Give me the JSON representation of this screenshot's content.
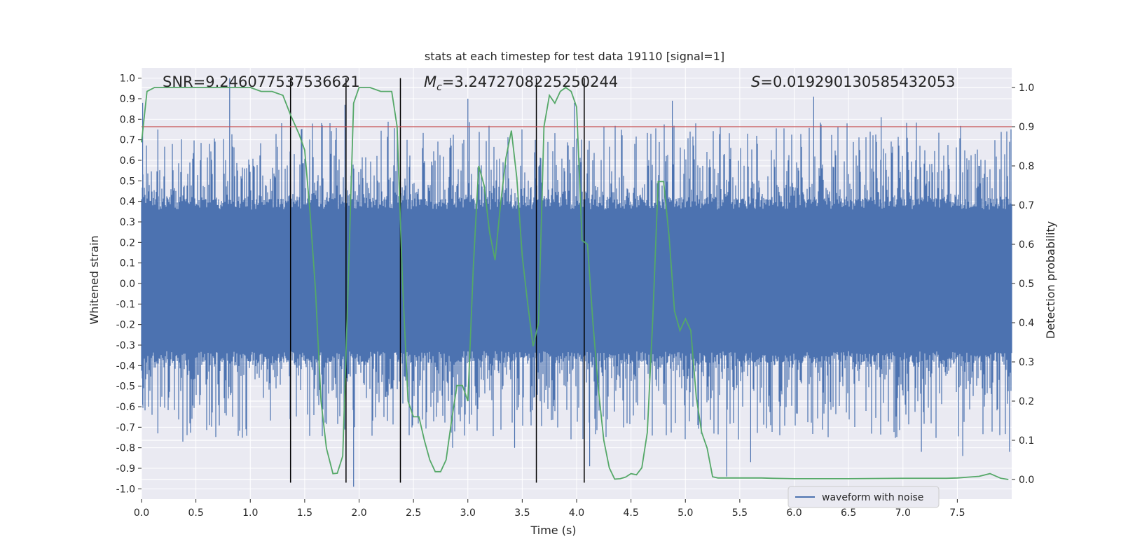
{
  "chart_data": {
    "type": "line",
    "title": "stats at each timestep for test data 19110 [signal=1]",
    "xlabel": "Time (s)",
    "ylabel": "Whitened strain",
    "y2label": "Detection probability",
    "xlim": [
      0.0,
      8.0
    ],
    "ylim": [
      -1.05,
      1.05
    ],
    "y2lim": [
      -0.05,
      1.05
    ],
    "xticks": [
      0.0,
      0.5,
      1.0,
      1.5,
      2.0,
      2.5,
      3.0,
      3.5,
      4.0,
      4.5,
      5.0,
      5.5,
      6.0,
      6.5,
      7.0,
      7.5
    ],
    "xtick_labels": [
      "0.0",
      "0.5",
      "1.0",
      "1.5",
      "2.0",
      "2.5",
      "3.0",
      "3.5",
      "4.0",
      "4.5",
      "5.0",
      "5.5",
      "6.0",
      "6.5",
      "7.0",
      "7.5"
    ],
    "yticks": [
      1.0,
      0.9,
      0.8,
      0.7,
      0.6,
      0.5,
      0.4,
      0.3,
      0.2,
      0.1,
      0.0,
      -0.1,
      -0.2,
      -0.3,
      -0.4,
      -0.5,
      -0.6,
      -0.7,
      -0.8,
      -0.9,
      -1.0
    ],
    "ytick_labels": [
      "1.0",
      "0.9",
      "0.8",
      "0.7",
      "0.6",
      "0.5",
      "0.4",
      "0.3",
      "0.2",
      "0.1",
      "0.0",
      "-0.1",
      "-0.2",
      "-0.3",
      "-0.4",
      "-0.5",
      "-0.6",
      "-0.7",
      "-0.8",
      "-0.9",
      "-1.0"
    ],
    "y2ticks": [
      1.0,
      0.9,
      0.8,
      0.7,
      0.6,
      0.5,
      0.4,
      0.3,
      0.2,
      0.1,
      0.0
    ],
    "y2tick_labels": [
      "1.0",
      "0.9",
      "0.8",
      "0.7",
      "0.6",
      "0.5",
      "0.4",
      "0.3",
      "0.2",
      "0.1",
      "0.0"
    ],
    "grid": true,
    "annotations": {
      "snr": "SNR=9.246077537536621",
      "mc_symbol": "M",
      "mc_sub": "c",
      "mc_value": "=3.2472708225250244",
      "s_symbol": "S",
      "s_value": "=0.019290130585432053"
    },
    "threshold": {
      "value": 0.9,
      "axis": "right",
      "color": "#c44e52"
    },
    "vlines_x": [
      1.37,
      1.88,
      2.38,
      3.63,
      4.07
    ],
    "legend": {
      "location": "bottom-right",
      "entries": [
        "waveform with noise"
      ]
    },
    "colors": {
      "waveform": "#4c72b0",
      "probability": "#55a868",
      "vline": "#000000",
      "axes_bg": "#eaeaf2",
      "grid": "#ffffff"
    },
    "series": [
      {
        "name": "waveform with noise",
        "axis": "left",
        "style": "dense noise band",
        "core_envelope": [
          -0.38,
          0.41
        ],
        "approx_spike_range": [
          -1.0,
          1.0
        ],
        "notable_spikes": [
          {
            "x": 0.01,
            "y": 0.88
          },
          {
            "x": 0.01,
            "y": -0.59
          },
          {
            "x": 0.15,
            "y": 0.75
          },
          {
            "x": 0.15,
            "y": -0.73
          },
          {
            "x": 0.38,
            "y": -0.77
          },
          {
            "x": 0.81,
            "y": 1.0
          },
          {
            "x": 0.96,
            "y": -0.71
          },
          {
            "x": 1.87,
            "y": 0.87
          },
          {
            "x": 1.95,
            "y": -0.99
          },
          {
            "x": 2.86,
            "y": -0.8
          },
          {
            "x": 3.0,
            "y": 0.9
          },
          {
            "x": 3.43,
            "y": -0.8
          },
          {
            "x": 3.98,
            "y": 0.88
          },
          {
            "x": 4.12,
            "y": -0.89
          },
          {
            "x": 4.88,
            "y": 0.89
          },
          {
            "x": 5.38,
            "y": -0.94
          },
          {
            "x": 5.6,
            "y": -0.87
          },
          {
            "x": 6.18,
            "y": 0.91
          },
          {
            "x": 6.8,
            "y": 0.81
          },
          {
            "x": 7.17,
            "y": -0.82
          },
          {
            "x": 7.55,
            "y": -0.84
          },
          {
            "x": 7.98,
            "y": -0.82
          },
          {
            "x": 7.98,
            "y": 0.69
          }
        ]
      },
      {
        "name": "detection probability",
        "axis": "right",
        "x": [
          0.0,
          0.05,
          0.12,
          0.2,
          0.5,
          0.8,
          1.0,
          1.1,
          1.2,
          1.3,
          1.37,
          1.45,
          1.5,
          1.55,
          1.6,
          1.65,
          1.7,
          1.76,
          1.8,
          1.85,
          1.9,
          1.95,
          2.0,
          2.05,
          2.1,
          2.2,
          2.3,
          2.35,
          2.4,
          2.45,
          2.5,
          2.55,
          2.6,
          2.65,
          2.7,
          2.75,
          2.8,
          2.85,
          2.9,
          2.95,
          3.0,
          3.05,
          3.1,
          3.15,
          3.2,
          3.25,
          3.3,
          3.35,
          3.4,
          3.45,
          3.5,
          3.55,
          3.6,
          3.65,
          3.7,
          3.75,
          3.8,
          3.85,
          3.9,
          3.95,
          4.0,
          4.05,
          4.1,
          4.15,
          4.2,
          4.25,
          4.3,
          4.35,
          4.4,
          4.45,
          4.5,
          4.55,
          4.6,
          4.65,
          4.7,
          4.75,
          4.8,
          4.85,
          4.9,
          4.95,
          5.0,
          5.05,
          5.1,
          5.15,
          5.2,
          5.25,
          5.3,
          5.5,
          5.7,
          5.8,
          6.0,
          6.5,
          7.0,
          7.4,
          7.5,
          7.6,
          7.7,
          7.8,
          7.9,
          7.97
        ],
        "y": [
          0.86,
          0.99,
          1.0,
          1.0,
          1.0,
          1.0,
          1.0,
          0.99,
          0.99,
          0.98,
          0.93,
          0.88,
          0.84,
          0.68,
          0.48,
          0.2,
          0.08,
          0.015,
          0.016,
          0.06,
          0.5,
          0.96,
          1.0,
          1.0,
          1.0,
          0.99,
          0.99,
          0.9,
          0.5,
          0.2,
          0.16,
          0.16,
          0.1,
          0.05,
          0.02,
          0.02,
          0.05,
          0.15,
          0.24,
          0.24,
          0.2,
          0.54,
          0.8,
          0.75,
          0.63,
          0.56,
          0.7,
          0.82,
          0.89,
          0.77,
          0.57,
          0.45,
          0.34,
          0.4,
          0.9,
          0.98,
          0.96,
          0.99,
          1.0,
          0.99,
          0.95,
          0.61,
          0.6,
          0.4,
          0.23,
          0.1,
          0.03,
          0.001,
          0.002,
          0.006,
          0.015,
          0.012,
          0.03,
          0.12,
          0.41,
          0.76,
          0.76,
          0.62,
          0.43,
          0.38,
          0.41,
          0.38,
          0.21,
          0.12,
          0.08,
          0.007,
          0.004,
          0.004,
          0.004,
          0.003,
          0.002,
          0.002,
          0.003,
          0.003,
          0.004,
          0.006,
          0.008,
          0.015,
          0.003,
          0.0
        ]
      }
    ]
  }
}
